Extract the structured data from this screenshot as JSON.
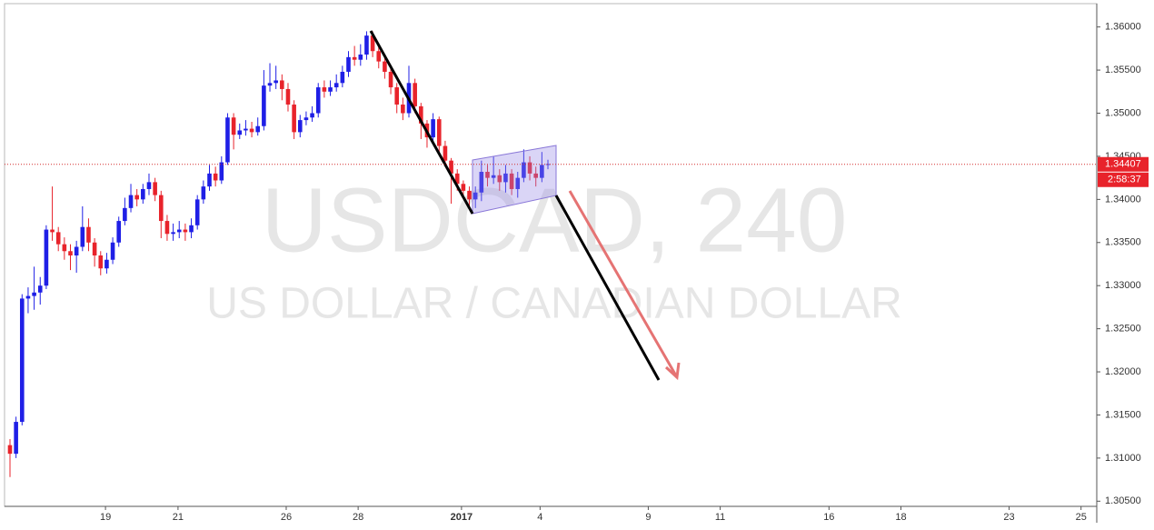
{
  "chart_data": {
    "type": "candlestick",
    "watermark": "USDCAD, 240",
    "subtitle": "US DOLLAR / CANADIAN DOLLAR",
    "up_color": "#1f1fe6",
    "down_color": "#e8232b",
    "open": [
      1.3115,
      1.3105,
      1.3142,
      1.3285,
      1.3288,
      1.3292,
      1.33,
      1.3365,
      1.3362,
      1.3348,
      1.334,
      1.3335,
      1.3345,
      1.3368,
      1.335,
      1.3335,
      1.332,
      1.333,
      1.335,
      1.3375,
      1.339,
      1.3405,
      1.34,
      1.3412,
      1.342,
      1.3405,
      1.3375,
      1.336,
      1.3362,
      1.3365,
      1.3362,
      1.337,
      1.34,
      1.3415,
      1.343,
      1.3422,
      1.3443,
      1.3495,
      1.3475,
      1.348,
      1.3482,
      1.3478,
      1.3485,
      1.3532,
      1.3535,
      1.3538,
      1.3528,
      1.351,
      1.3478,
      1.3492,
      1.3495,
      1.35,
      1.353,
      1.3525,
      1.353,
      1.3535,
      1.3548,
      1.3565,
      1.3562,
      1.3568,
      1.359,
      1.3572,
      1.356,
      1.3548,
      1.353,
      1.351,
      1.35,
      1.3535,
      1.3508,
      1.3488,
      1.3472,
      1.3493,
      1.3462,
      1.3445,
      1.343,
      1.3418,
      1.341,
      1.34,
      1.3408,
      1.3432,
      1.3425,
      1.3428,
      1.342,
      1.343,
      1.3412,
      1.3425,
      1.3443,
      1.343,
      1.3425,
      1.344
    ],
    "high": [
      1.3122,
      1.3148,
      1.329,
      1.3298,
      1.3322,
      1.331,
      1.337,
      1.3415,
      1.3368,
      1.3356,
      1.3348,
      1.3352,
      1.3392,
      1.3378,
      1.3355,
      1.334,
      1.3338,
      1.3356,
      1.338,
      1.3402,
      1.3418,
      1.3412,
      1.3418,
      1.343,
      1.3425,
      1.341,
      1.3382,
      1.3372,
      1.3375,
      1.3372,
      1.3378,
      1.3405,
      1.3422,
      1.344,
      1.3438,
      1.345,
      1.35,
      1.35,
      1.3488,
      1.3492,
      1.349,
      1.3495,
      1.355,
      1.3558,
      1.3555,
      1.3545,
      1.3535,
      1.3515,
      1.3498,
      1.3502,
      1.3508,
      1.3535,
      1.3538,
      1.3538,
      1.3545,
      1.3555,
      1.3572,
      1.3578,
      1.358,
      1.3595,
      1.3595,
      1.3578,
      1.3565,
      1.3552,
      1.3535,
      1.3518,
      1.3555,
      1.354,
      1.3512,
      1.3492,
      1.35,
      1.3496,
      1.3468,
      1.3448,
      1.3435,
      1.3422,
      1.3415,
      1.3415,
      1.3445,
      1.344,
      1.345,
      1.3435,
      1.344,
      1.3435,
      1.3432,
      1.3458,
      1.345,
      1.3438,
      1.3455,
      1.3446
    ],
    "low": [
      1.3078,
      1.31,
      1.3138,
      1.3268,
      1.3272,
      1.3278,
      1.3296,
      1.3352,
      1.334,
      1.333,
      1.3318,
      1.3315,
      1.334,
      1.334,
      1.3322,
      1.3312,
      1.3314,
      1.3325,
      1.3345,
      1.337,
      1.3385,
      1.3392,
      1.3395,
      1.3405,
      1.3398,
      1.3355,
      1.3352,
      1.3352,
      1.3355,
      1.3352,
      1.3355,
      1.3365,
      1.3395,
      1.341,
      1.3415,
      1.3418,
      1.344,
      1.3458,
      1.347,
      1.3474,
      1.3472,
      1.3474,
      1.348,
      1.3525,
      1.3528,
      1.3515,
      1.3502,
      1.347,
      1.3472,
      1.3486,
      1.349,
      1.3495,
      1.3518,
      1.352,
      1.3525,
      1.353,
      1.3542,
      1.3555,
      1.3555,
      1.3562,
      1.3565,
      1.3552,
      1.354,
      1.3522,
      1.35,
      1.3492,
      1.3495,
      1.35,
      1.347,
      1.346,
      1.3468,
      1.3455,
      1.3438,
      1.3395,
      1.341,
      1.3402,
      1.3392,
      1.339,
      1.3398,
      1.3415,
      1.3418,
      1.341,
      1.3408,
      1.3405,
      1.3402,
      1.342,
      1.3422,
      1.3415,
      1.342,
      1.3435
    ],
    "close": [
      1.3105,
      1.3142,
      1.3285,
      1.3288,
      1.3292,
      1.33,
      1.3365,
      1.3362,
      1.3348,
      1.334,
      1.3335,
      1.3345,
      1.3368,
      1.335,
      1.3335,
      1.332,
      1.333,
      1.335,
      1.3375,
      1.339,
      1.3405,
      1.34,
      1.3412,
      1.342,
      1.3405,
      1.3375,
      1.336,
      1.3362,
      1.3365,
      1.3362,
      1.337,
      1.34,
      1.3415,
      1.343,
      1.3422,
      1.3443,
      1.3495,
      1.3475,
      1.348,
      1.3482,
      1.3478,
      1.3485,
      1.3532,
      1.3535,
      1.3538,
      1.3528,
      1.351,
      1.3478,
      1.3492,
      1.3495,
      1.35,
      1.353,
      1.3525,
      1.353,
      1.3535,
      1.3548,
      1.3565,
      1.3562,
      1.3568,
      1.359,
      1.3572,
      1.356,
      1.3548,
      1.353,
      1.351,
      1.35,
      1.3535,
      1.3508,
      1.3488,
      1.3472,
      1.3493,
      1.3462,
      1.3445,
      1.343,
      1.3418,
      1.341,
      1.34,
      1.3408,
      1.3432,
      1.3425,
      1.3428,
      1.342,
      1.343,
      1.3412,
      1.3425,
      1.3443,
      1.343,
      1.3425,
      1.344,
      1.3441
    ],
    "xlim": [
      -0.9,
      179.8
    ],
    "xticks": [
      {
        "value": 15.8,
        "label": "19"
      },
      {
        "value": 27.8,
        "label": "21"
      },
      {
        "value": 45.7,
        "label": "26"
      },
      {
        "value": 57.6,
        "label": "28"
      },
      {
        "value": 74.7,
        "label": "2017"
      },
      {
        "value": 87.7,
        "label": "4"
      },
      {
        "value": 105.6,
        "label": "9"
      },
      {
        "value": 117.5,
        "label": "11"
      },
      {
        "value": 135.5,
        "label": "16"
      },
      {
        "value": 147.4,
        "label": "18"
      },
      {
        "value": 165.3,
        "label": "23"
      },
      {
        "value": 177.2,
        "label": "25"
      }
    ],
    "ylim": [
      1.3044,
      1.3626
    ],
    "yticks": [
      {
        "value": 1.305,
        "label": "1.30500"
      },
      {
        "value": 1.31,
        "label": "1.31000"
      },
      {
        "value": 1.315,
        "label": "1.31500"
      },
      {
        "value": 1.32,
        "label": "1.32000"
      },
      {
        "value": 1.325,
        "label": "1.32500"
      },
      {
        "value": 1.33,
        "label": "1.33000"
      },
      {
        "value": 1.335,
        "label": "1.33500"
      },
      {
        "value": 1.34,
        "label": "1.34000"
      },
      {
        "value": 1.345,
        "label": "1.34500"
      },
      {
        "value": 1.35,
        "label": "1.35000"
      },
      {
        "value": 1.355,
        "label": "1.35500"
      },
      {
        "value": 1.36,
        "label": "1.36000"
      }
    ],
    "grid": false,
    "last_price": 1.34407,
    "countdown": "2:58:37"
  }
}
